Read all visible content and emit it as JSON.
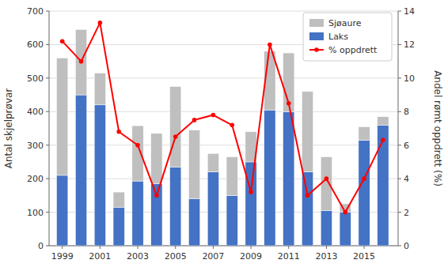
{
  "chart_data": {
    "type": "bar",
    "stacked": true,
    "x": [
      1999,
      2000,
      2001,
      2002,
      2003,
      2004,
      2005,
      2006,
      2007,
      2008,
      2009,
      2010,
      2011,
      2012,
      2013,
      2014,
      2015,
      2016
    ],
    "xlim": [
      1998.3,
      2016.8
    ],
    "xticks": [
      1999,
      2001,
      2003,
      2005,
      2007,
      2009,
      2011,
      2013,
      2015
    ],
    "ylabel": "Antal skjelprøvar",
    "ylim": [
      0,
      700
    ],
    "yticks": [
      0,
      100,
      200,
      300,
      400,
      500,
      600,
      700
    ],
    "y2label": "Andel rømt oppdrett (%)",
    "y2lim": [
      0,
      14
    ],
    "y2ticks": [
      0,
      2,
      4,
      6,
      8,
      10,
      12,
      14
    ],
    "grid": true,
    "legend": "upper right",
    "series": [
      {
        "name": "Laks",
        "type": "bar",
        "color": "#4472C4",
        "values": [
          210,
          450,
          420,
          115,
          193,
          185,
          235,
          140,
          220,
          150,
          250,
          405,
          400,
          220,
          105,
          100,
          315,
          360
        ]
      },
      {
        "name": "Sjøaure",
        "type": "bar",
        "color": "#BFBFBF",
        "values": [
          350,
          195,
          95,
          45,
          165,
          150,
          240,
          205,
          55,
          115,
          90,
          175,
          175,
          240,
          160,
          25,
          40,
          25
        ]
      },
      {
        "name": "% oppdrett",
        "type": "line",
        "axis": "y2",
        "color": "#FF0000",
        "marker": "circle",
        "values": [
          12.2,
          11.0,
          13.3,
          6.8,
          6.0,
          3.0,
          6.5,
          7.5,
          7.8,
          7.2,
          3.2,
          12.0,
          8.5,
          3.0,
          4.0,
          2.0,
          4.0,
          6.3
        ]
      }
    ]
  }
}
